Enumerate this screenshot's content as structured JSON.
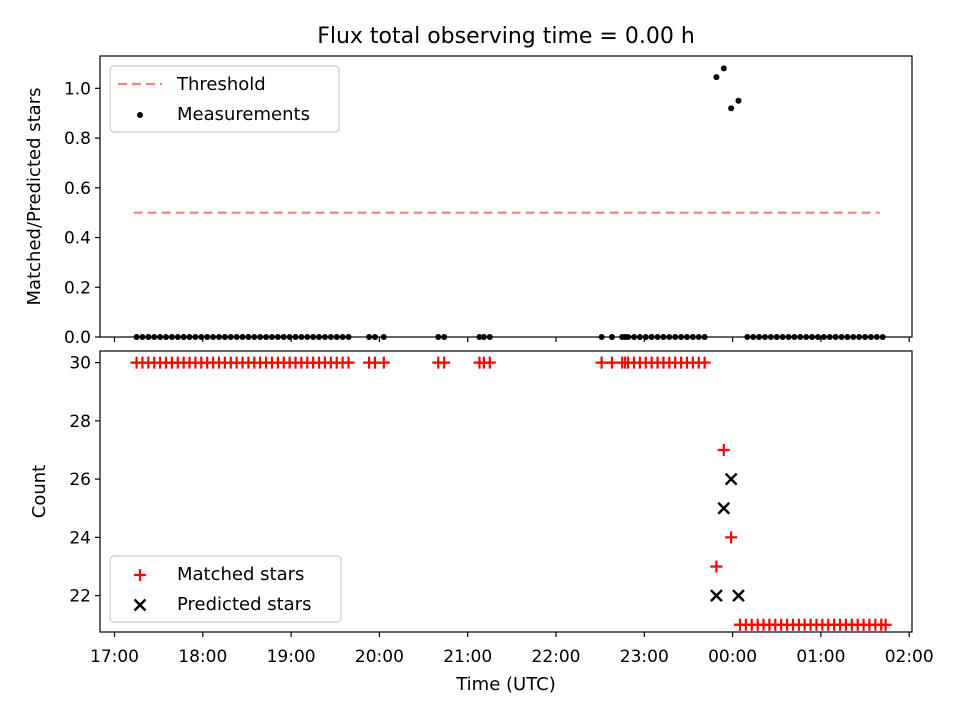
{
  "chart_data": {
    "title": "Flux total observing time = 0.00 h",
    "xlabel": "Time (UTC)",
    "x_ticks": [
      "17:00",
      "18:00",
      "19:00",
      "20:00",
      "21:00",
      "22:00",
      "23:00",
      "00:00",
      "01:00",
      "02:00"
    ],
    "panels": [
      {
        "type": "scatter",
        "ylabel": "Matched/Predicted stars",
        "ylim": [
          0,
          1.13
        ],
        "y_ticks": [
          "0.0",
          "0.2",
          "0.4",
          "0.6",
          "0.8",
          "1.0"
        ],
        "legend_position": "upper left",
        "series": [
          {
            "name": "Threshold",
            "kind": "hline",
            "y": 0.5,
            "x_start": "17:13",
            "x_end": "01:40",
            "color": "#ff7f7f",
            "style": "dashed"
          },
          {
            "name": "Measurements",
            "kind": "points",
            "color": "#000000",
            "marker": "dot",
            "points": [
              [
                "17:15",
                0
              ],
              [
                "17:19",
                0
              ],
              [
                "17:23",
                0
              ],
              [
                "17:27",
                0
              ],
              [
                "17:31",
                0
              ],
              [
                "17:35",
                0
              ],
              [
                "17:39",
                0
              ],
              [
                "17:43",
                0
              ],
              [
                "17:47",
                0
              ],
              [
                "17:51",
                0
              ],
              [
                "17:55",
                0
              ],
              [
                "17:59",
                0
              ],
              [
                "18:03",
                0
              ],
              [
                "18:07",
                0
              ],
              [
                "18:11",
                0
              ],
              [
                "18:15",
                0
              ],
              [
                "18:19",
                0
              ],
              [
                "18:23",
                0
              ],
              [
                "18:27",
                0
              ],
              [
                "18:31",
                0
              ],
              [
                "18:35",
                0
              ],
              [
                "18:39",
                0
              ],
              [
                "18:43",
                0
              ],
              [
                "18:47",
                0
              ],
              [
                "18:51",
                0
              ],
              [
                "18:55",
                0
              ],
              [
                "18:59",
                0
              ],
              [
                "19:03",
                0
              ],
              [
                "19:07",
                0
              ],
              [
                "19:11",
                0
              ],
              [
                "19:15",
                0
              ],
              [
                "19:19",
                0
              ],
              [
                "19:23",
                0
              ],
              [
                "19:27",
                0
              ],
              [
                "19:31",
                0
              ],
              [
                "19:35",
                0
              ],
              [
                "19:39",
                0
              ],
              [
                "19:53",
                0
              ],
              [
                "19:57",
                0
              ],
              [
                "20:03",
                0
              ],
              [
                "20:40",
                0
              ],
              [
                "20:44",
                0
              ],
              [
                "21:08",
                0
              ],
              [
                "21:11",
                0
              ],
              [
                "21:15",
                0
              ],
              [
                "22:31",
                0
              ],
              [
                "22:38",
                0
              ],
              [
                "22:45",
                0
              ],
              [
                "22:47",
                0
              ],
              [
                "22:49",
                0
              ],
              [
                "22:53",
                0
              ],
              [
                "22:57",
                0
              ],
              [
                "23:01",
                0
              ],
              [
                "23:05",
                0
              ],
              [
                "23:09",
                0
              ],
              [
                "23:13",
                0
              ],
              [
                "23:17",
                0
              ],
              [
                "23:21",
                0
              ],
              [
                "23:25",
                0
              ],
              [
                "23:29",
                0
              ],
              [
                "23:33",
                0
              ],
              [
                "23:37",
                0
              ],
              [
                "23:41",
                0
              ],
              [
                "23:49",
                1.045
              ],
              [
                "23:54",
                1.08
              ],
              [
                "23:59",
                0.92
              ],
              [
                "00:04",
                0.95
              ],
              [
                "00:10",
                0
              ],
              [
                "00:14",
                0
              ],
              [
                "00:18",
                0
              ],
              [
                "00:22",
                0
              ],
              [
                "00:26",
                0
              ],
              [
                "00:30",
                0
              ],
              [
                "00:34",
                0
              ],
              [
                "00:38",
                0
              ],
              [
                "00:42",
                0
              ],
              [
                "00:46",
                0
              ],
              [
                "00:50",
                0
              ],
              [
                "00:54",
                0
              ],
              [
                "00:58",
                0
              ],
              [
                "01:02",
                0
              ],
              [
                "01:06",
                0
              ],
              [
                "01:10",
                0
              ],
              [
                "01:14",
                0
              ],
              [
                "01:18",
                0
              ],
              [
                "01:22",
                0
              ],
              [
                "01:26",
                0
              ],
              [
                "01:30",
                0
              ],
              [
                "01:34",
                0
              ],
              [
                "01:38",
                0
              ],
              [
                "01:42",
                0
              ]
            ]
          }
        ]
      },
      {
        "type": "scatter",
        "ylabel": "Count",
        "ylim": [
          20.75,
          30.4
        ],
        "y_ticks": [
          "22",
          "24",
          "26",
          "28",
          "30"
        ],
        "legend_position": "lower left",
        "series": [
          {
            "name": "Matched stars",
            "kind": "points",
            "color": "#ff0000",
            "marker": "plus",
            "points": [
              [
                "17:15",
                30
              ],
              [
                "17:19",
                30
              ],
              [
                "17:23",
                30
              ],
              [
                "17:27",
                30
              ],
              [
                "17:31",
                30
              ],
              [
                "17:35",
                30
              ],
              [
                "17:39",
                30
              ],
              [
                "17:43",
                30
              ],
              [
                "17:47",
                30
              ],
              [
                "17:51",
                30
              ],
              [
                "17:55",
                30
              ],
              [
                "17:59",
                30
              ],
              [
                "18:03",
                30
              ],
              [
                "18:07",
                30
              ],
              [
                "18:11",
                30
              ],
              [
                "18:15",
                30
              ],
              [
                "18:19",
                30
              ],
              [
                "18:23",
                30
              ],
              [
                "18:27",
                30
              ],
              [
                "18:31",
                30
              ],
              [
                "18:35",
                30
              ],
              [
                "18:39",
                30
              ],
              [
                "18:43",
                30
              ],
              [
                "18:47",
                30
              ],
              [
                "18:51",
                30
              ],
              [
                "18:55",
                30
              ],
              [
                "18:59",
                30
              ],
              [
                "19:03",
                30
              ],
              [
                "19:07",
                30
              ],
              [
                "19:11",
                30
              ],
              [
                "19:15",
                30
              ],
              [
                "19:19",
                30
              ],
              [
                "19:23",
                30
              ],
              [
                "19:27",
                30
              ],
              [
                "19:31",
                30
              ],
              [
                "19:35",
                30
              ],
              [
                "19:39",
                30
              ],
              [
                "19:53",
                30
              ],
              [
                "19:57",
                30
              ],
              [
                "20:03",
                30
              ],
              [
                "20:40",
                30
              ],
              [
                "20:44",
                30
              ],
              [
                "21:08",
                30
              ],
              [
                "21:11",
                30
              ],
              [
                "21:15",
                30
              ],
              [
                "22:31",
                30
              ],
              [
                "22:38",
                30
              ],
              [
                "22:45",
                30
              ],
              [
                "22:47",
                30
              ],
              [
                "22:49",
                30
              ],
              [
                "22:53",
                30
              ],
              [
                "22:57",
                30
              ],
              [
                "23:01",
                30
              ],
              [
                "23:05",
                30
              ],
              [
                "23:09",
                30
              ],
              [
                "23:13",
                30
              ],
              [
                "23:17",
                30
              ],
              [
                "23:21",
                30
              ],
              [
                "23:25",
                30
              ],
              [
                "23:29",
                30
              ],
              [
                "23:33",
                30
              ],
              [
                "23:37",
                30
              ],
              [
                "23:41",
                30
              ],
              [
                "23:49",
                23
              ],
              [
                "23:54",
                27
              ],
              [
                "23:59",
                24
              ],
              [
                "00:05",
                21
              ],
              [
                "00:09",
                21
              ],
              [
                "00:13",
                21
              ],
              [
                "00:17",
                21
              ],
              [
                "00:21",
                21
              ],
              [
                "00:25",
                21
              ],
              [
                "00:29",
                21
              ],
              [
                "00:33",
                21
              ],
              [
                "00:37",
                21
              ],
              [
                "00:41",
                21
              ],
              [
                "00:45",
                21
              ],
              [
                "00:49",
                21
              ],
              [
                "00:53",
                21
              ],
              [
                "00:57",
                21
              ],
              [
                "01:01",
                21
              ],
              [
                "01:05",
                21
              ],
              [
                "01:09",
                21
              ],
              [
                "01:13",
                21
              ],
              [
                "01:17",
                21
              ],
              [
                "01:21",
                21
              ],
              [
                "01:25",
                21
              ],
              [
                "01:29",
                21
              ],
              [
                "01:33",
                21
              ],
              [
                "01:37",
                21
              ],
              [
                "01:41",
                21
              ],
              [
                "01:44",
                21
              ]
            ]
          },
          {
            "name": "Predicted stars",
            "kind": "points",
            "color": "#000000",
            "marker": "x",
            "points": [
              [
                "23:49",
                22
              ],
              [
                "23:54",
                25
              ],
              [
                "23:59",
                26
              ],
              [
                "00:04",
                22
              ]
            ]
          }
        ]
      }
    ]
  }
}
